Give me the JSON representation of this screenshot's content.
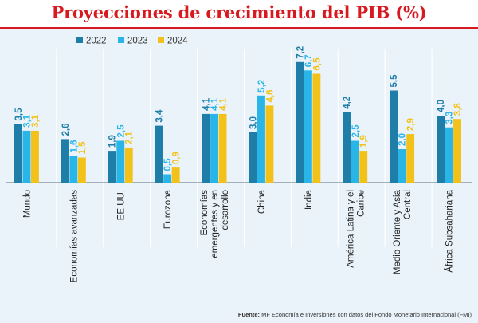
{
  "header": {
    "title": "Proyecciones de crecimiento del PIB (%)"
  },
  "footer": {
    "source_label": "Fuente:",
    "source_text": "MF Economía e Inversiones con datos del Fondo Monetario Internacional (FMI)"
  },
  "colors": {
    "s2022": "#1f7ea8",
    "s2023": "#29b5e8",
    "s2024": "#f2c21b",
    "title": "#d71920"
  },
  "chart_data": {
    "type": "bar",
    "title": "Proyecciones de crecimiento del PIB (%)",
    "categories": [
      "Mundo",
      "Economías avanzadas",
      "EE.UU.",
      "Eurozona",
      "Economías emergentes y en desarrollo",
      "China",
      "India",
      "América Latina y el Caribe",
      "Medio Oriente y Asia Central",
      "África Subsahariana"
    ],
    "category_lines": [
      [
        "Mundo"
      ],
      [
        "Economías avanzadas"
      ],
      [
        "EE.UU."
      ],
      [
        "Eurozona"
      ],
      [
        "Economías",
        "emergentes y en",
        "desarrollo"
      ],
      [
        "China"
      ],
      [
        "India"
      ],
      [
        "América Latina y el",
        "Caribe"
      ],
      [
        "Medio Oriente y Asia",
        "Central"
      ],
      [
        "África Subsahariana"
      ]
    ],
    "series": [
      {
        "name": "2022",
        "values": [
          3.5,
          2.6,
          1.9,
          3.4,
          4.1,
          3.0,
          7.2,
          4.2,
          5.5,
          4.0
        ],
        "labels": [
          "3,5",
          "2,6",
          "1,9",
          "3,4",
          "4,1",
          "3,0",
          "7,2",
          "4,2",
          "5,5",
          "4,0"
        ]
      },
      {
        "name": "2023",
        "values": [
          3.1,
          1.6,
          2.5,
          0.5,
          4.1,
          5.2,
          6.7,
          2.5,
          2.0,
          3.3
        ],
        "labels": [
          "3,1",
          "1,6",
          "2,5",
          "0,5",
          "4,1",
          "5,2",
          "6,7",
          "2,5",
          "2,0",
          "3,3"
        ]
      },
      {
        "name": "2024",
        "values": [
          3.1,
          1.5,
          2.1,
          0.9,
          4.1,
          4.6,
          6.5,
          1.9,
          2.9,
          3.8
        ],
        "labels": [
          "3,1",
          "1,5",
          "2,1",
          "0,9",
          "4,1",
          "4,6",
          "6,5",
          "1,9",
          "2,9",
          "3,8"
        ]
      }
    ],
    "xlabel": "",
    "ylabel": "",
    "ylim": [
      0,
      8
    ],
    "legend_position": "top-left",
    "grid": false
  }
}
